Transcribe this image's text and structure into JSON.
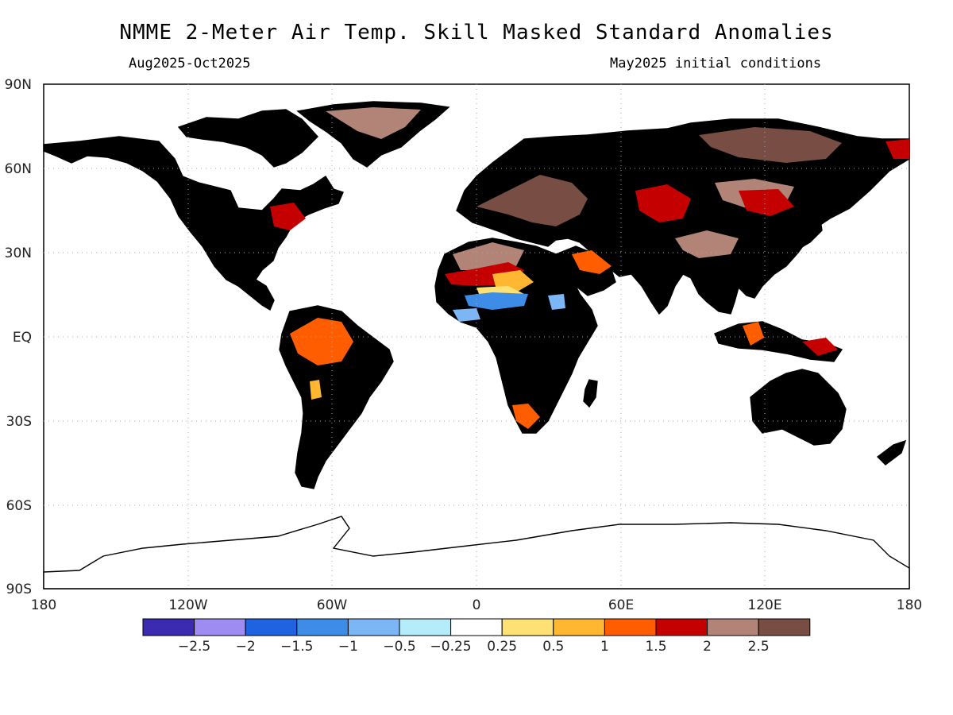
{
  "header": {
    "title": "NMME 2-Meter Air Temp. Skill Masked Standard Anomalies",
    "period": "Aug2025-Oct2025",
    "initial_conditions": "May2025 initial conditions"
  },
  "map": {
    "lat_labels": [
      "90N",
      "60N",
      "30N",
      "EQ",
      "30S",
      "60S",
      "90S"
    ],
    "lon_labels": [
      "180",
      "120W",
      "60W",
      "0",
      "60E",
      "120E",
      "180"
    ],
    "land_color": "#dcdcdc",
    "gridlines": true
  },
  "colorbar": {
    "colors": [
      "#3a2bb0",
      "#9f8cf3",
      "#1f63e0",
      "#3d8de8",
      "#7db6f5",
      "#b4ecfa",
      "#ffffff",
      "#fde174",
      "#ffb732",
      "#ff5d00",
      "#c40000",
      "#b18477",
      "#774d44"
    ],
    "labels": [
      "-2.5",
      "-2",
      "-1.5",
      "-1",
      "-0.5",
      "-0.25",
      "0.25",
      "0.5",
      "1",
      "1.5",
      "2",
      "2.5"
    ]
  }
}
